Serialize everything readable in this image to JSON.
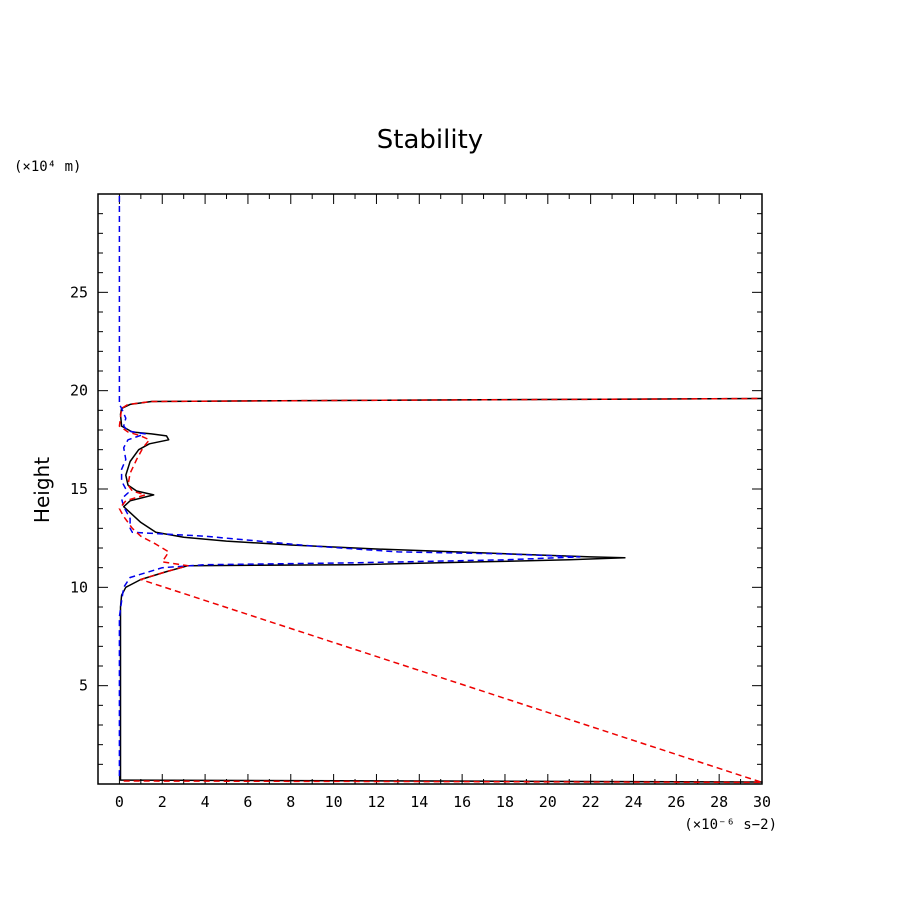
{
  "chart_data": {
    "type": "line",
    "title": "Stability",
    "ylabel": "Height",
    "xlabel": "",
    "y_unit": "(×10⁴ m)",
    "x_unit": "(×10⁻⁶ s−2)",
    "xlim": [
      -1,
      30
    ],
    "ylim": [
      0,
      30
    ],
    "x_ticks": [
      0,
      2,
      4,
      6,
      8,
      10,
      12,
      14,
      16,
      18,
      20,
      22,
      24,
      26,
      28,
      30
    ],
    "x_tick_labels": [
      "0",
      "2",
      "4",
      "6",
      "8",
      "10",
      "12",
      "14",
      "16",
      "18",
      "20",
      "22",
      "24",
      "26",
      "28",
      "30"
    ],
    "y_ticks": [
      5,
      10,
      15,
      20,
      25
    ],
    "y_tick_labels": [
      "5",
      "10",
      "15",
      "20",
      "25"
    ],
    "series": [
      {
        "name": "series-black-solid",
        "color": "#000000",
        "dash": "solid",
        "points": [
          [
            0.05,
            0.2
          ],
          [
            15,
            0.15
          ],
          [
            30,
            0.1
          ],
          [
            0.05,
            0.2
          ],
          [
            0.05,
            9.0
          ],
          [
            0.1,
            9.6
          ],
          [
            0.3,
            10.0
          ],
          [
            1.0,
            10.4
          ],
          [
            2.2,
            10.8
          ],
          [
            3.2,
            11.1
          ],
          [
            11,
            11.15
          ],
          [
            17,
            11.3
          ],
          [
            21,
            11.4
          ],
          [
            23.6,
            11.5
          ],
          [
            22,
            11.55
          ],
          [
            17,
            11.75
          ],
          [
            12,
            11.95
          ],
          [
            8,
            12.15
          ],
          [
            5,
            12.35
          ],
          [
            3,
            12.55
          ],
          [
            1.7,
            12.8
          ],
          [
            1.0,
            13.3
          ],
          [
            0.5,
            13.8
          ],
          [
            0.2,
            14.1
          ],
          [
            0.5,
            14.4
          ],
          [
            1.6,
            14.7
          ],
          [
            0.8,
            14.9
          ],
          [
            0.4,
            15.2
          ],
          [
            0.3,
            15.7
          ],
          [
            0.5,
            16.4
          ],
          [
            0.9,
            17.0
          ],
          [
            1.4,
            17.3
          ],
          [
            2.3,
            17.5
          ],
          [
            2.2,
            17.7
          ],
          [
            1.5,
            17.8
          ],
          [
            0.6,
            17.9
          ],
          [
            0.1,
            18.2
          ],
          [
            0.05,
            18.8
          ],
          [
            0.1,
            19.1
          ],
          [
            0.5,
            19.3
          ],
          [
            1.5,
            19.45
          ],
          [
            10,
            19.5
          ],
          [
            30,
            19.6
          ]
        ]
      },
      {
        "name": "series-blue-dashed",
        "color": "#0000ee",
        "dash": "dashed",
        "points": [
          [
            0.0,
            29.9
          ],
          [
            0.0,
            19.3
          ],
          [
            0.1,
            19.1
          ],
          [
            0.3,
            18.6
          ],
          [
            0.2,
            18.2
          ],
          [
            0.4,
            17.95
          ],
          [
            1.2,
            17.8
          ],
          [
            0.4,
            17.5
          ],
          [
            0.2,
            17.1
          ],
          [
            0.3,
            16.5
          ],
          [
            0.1,
            16.0
          ],
          [
            0.1,
            15.4
          ],
          [
            0.3,
            15.0
          ],
          [
            0.4,
            14.8
          ],
          [
            0.1,
            14.5
          ],
          [
            0.2,
            14.1
          ],
          [
            0.5,
            13.5
          ],
          [
            0.5,
            13.0
          ],
          [
            0.6,
            12.8
          ],
          [
            4,
            12.6
          ],
          [
            9,
            12.1
          ],
          [
            13,
            11.8
          ],
          [
            18,
            11.7
          ],
          [
            21.5,
            11.55
          ],
          [
            18,
            11.4
          ],
          [
            11,
            11.25
          ],
          [
            4,
            11.15
          ],
          [
            2.0,
            11.0
          ],
          [
            0.5,
            10.5
          ],
          [
            0.2,
            10.0
          ],
          [
            0.1,
            9.3
          ],
          [
            0.0,
            8.5
          ],
          [
            0.0,
            0.2
          ]
        ]
      },
      {
        "name": "series-red-dashed",
        "color": "#ee0000",
        "dash": "dashed",
        "points": [
          [
            0.2,
            0.15
          ],
          [
            15,
            0.12
          ],
          [
            30,
            0.08
          ],
          [
            1.0,
            10.4
          ],
          [
            2.2,
            10.8
          ],
          [
            3.2,
            11.1
          ],
          [
            2.0,
            11.3
          ],
          [
            2.3,
            11.8
          ],
          [
            1.7,
            12.2
          ],
          [
            1.0,
            12.6
          ],
          [
            0.6,
            13.0
          ],
          [
            0.2,
            13.6
          ],
          [
            0.0,
            14.0
          ],
          [
            0.3,
            14.4
          ],
          [
            1.2,
            14.7
          ],
          [
            0.6,
            14.9
          ],
          [
            0.4,
            15.2
          ],
          [
            0.5,
            15.8
          ],
          [
            0.8,
            16.5
          ],
          [
            1.1,
            17.1
          ],
          [
            1.4,
            17.5
          ],
          [
            1.0,
            17.7
          ],
          [
            0.4,
            17.9
          ],
          [
            0.0,
            18.2
          ],
          [
            0.1,
            19.1
          ],
          [
            0.4,
            19.3
          ],
          [
            1.5,
            19.45
          ],
          [
            10,
            19.5
          ],
          [
            30,
            19.6
          ]
        ]
      }
    ]
  }
}
